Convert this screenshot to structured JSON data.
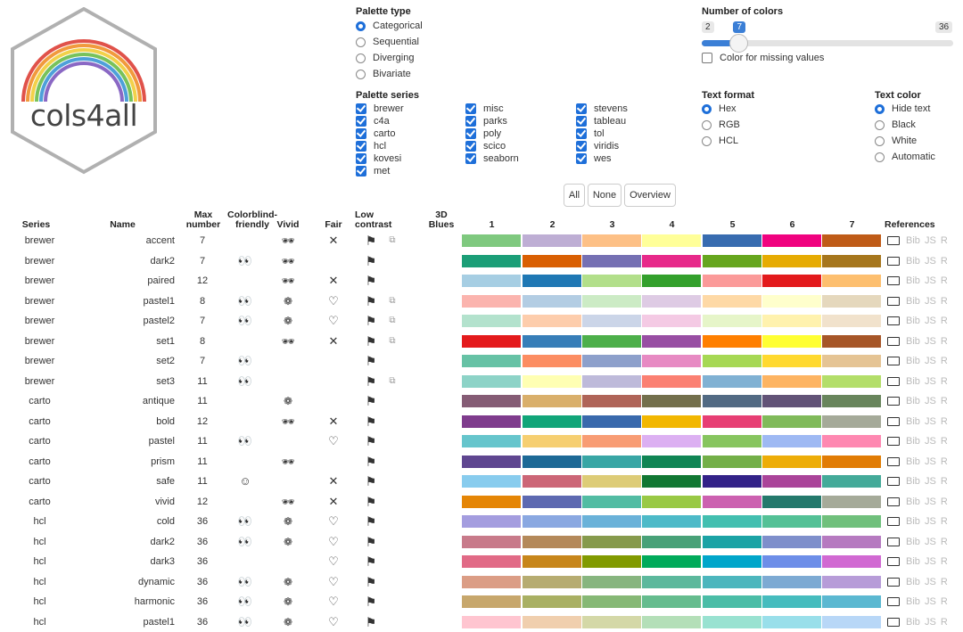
{
  "logo": {
    "text": "cols4all"
  },
  "palette_type": {
    "title": "Palette type",
    "options": [
      {
        "label": "Categorical",
        "selected": true
      },
      {
        "label": "Sequential",
        "selected": false
      },
      {
        "label": "Diverging",
        "selected": false
      },
      {
        "label": "Bivariate",
        "selected": false
      }
    ]
  },
  "number_of_colors": {
    "title": "Number of colors",
    "min": "2",
    "value": "7",
    "max": "36",
    "value_fraction": 0.147,
    "missing_label": "Color for missing values"
  },
  "palette_series": {
    "title": "Palette series",
    "columns": [
      [
        "brewer",
        "c4a",
        "carto",
        "hcl",
        "kovesi",
        "met"
      ],
      [
        "misc",
        "parks",
        "poly",
        "scico",
        "seaborn"
      ],
      [
        "stevens",
        "tableau",
        "tol",
        "viridis",
        "wes"
      ]
    ]
  },
  "text_format": {
    "title": "Text format",
    "options": [
      {
        "label": "Hex",
        "selected": true
      },
      {
        "label": "RGB",
        "selected": false
      },
      {
        "label": "HCL",
        "selected": false
      }
    ]
  },
  "text_color": {
    "title": "Text color",
    "options": [
      {
        "label": "Hide text",
        "selected": true
      },
      {
        "label": "Black",
        "selected": false
      },
      {
        "label": "White",
        "selected": false
      },
      {
        "label": "Automatic",
        "selected": false
      }
    ]
  },
  "buttons": {
    "all": "All",
    "none": "None",
    "overview": "Overview"
  },
  "table": {
    "headers": {
      "series": "Series",
      "name": "Name",
      "max": "Max number",
      "colorblind": "Colorblind-friendly",
      "vivid": "Vivid",
      "fair": "Fair",
      "low_contrast": "Low contrast",
      "blues": "3D Blues",
      "references": "References",
      "cols": [
        "1",
        "2",
        "3",
        "4",
        "5",
        "6",
        "7"
      ]
    },
    "icons": {
      "colorblind_eyes": "👀",
      "colorblind_smile": "☺",
      "vivid": "🕶",
      "vivid_soft": "❁",
      "fair_x": "✕",
      "fair_heart": "♡",
      "flag": "⚑",
      "split": "⧉"
    },
    "ref_text": "Bib JS R",
    "rows": [
      {
        "series": "brewer",
        "name": "accent",
        "max": "7",
        "cb": "",
        "vivid": "🕶",
        "fair": "✕",
        "low2": "⧉",
        "colors": [
          "#7fc97f",
          "#beaed4",
          "#fdc086",
          "#ffff99",
          "#386cb0",
          "#f0027f",
          "#bf5b17"
        ]
      },
      {
        "series": "brewer",
        "name": "dark2",
        "max": "7",
        "cb": "👀",
        "vivid": "🕶",
        "fair": "",
        "low2": "",
        "colors": [
          "#1b9e77",
          "#d95f02",
          "#7570b3",
          "#e7298a",
          "#66a61e",
          "#e6ab02",
          "#a6761d"
        ]
      },
      {
        "series": "brewer",
        "name": "paired",
        "max": "12",
        "cb": "",
        "vivid": "🕶",
        "fair": "✕",
        "low2": "",
        "colors": [
          "#a6cee3",
          "#1f78b4",
          "#b2df8a",
          "#33a02c",
          "#fb9a99",
          "#e31a1c",
          "#fdbf6f"
        ]
      },
      {
        "series": "brewer",
        "name": "pastel1",
        "max": "8",
        "cb": "👀",
        "vivid": "❁",
        "fair": "♡",
        "low2": "⧉",
        "colors": [
          "#fbb4ae",
          "#b3cde3",
          "#ccebc5",
          "#decbe4",
          "#fed9a6",
          "#ffffcc",
          "#e5d8bd"
        ]
      },
      {
        "series": "brewer",
        "name": "pastel2",
        "max": "7",
        "cb": "👀",
        "vivid": "❁",
        "fair": "♡",
        "low2": "⧉",
        "colors": [
          "#b3e2cd",
          "#fdcdac",
          "#cbd5e8",
          "#f4cae4",
          "#e6f5c9",
          "#fff2ae",
          "#f1e2cc"
        ]
      },
      {
        "series": "brewer",
        "name": "set1",
        "max": "8",
        "cb": "",
        "vivid": "🕶",
        "fair": "✕",
        "low2": "⧉",
        "colors": [
          "#e41a1c",
          "#377eb8",
          "#4daf4a",
          "#984ea3",
          "#ff7f00",
          "#ffff33",
          "#a65628"
        ]
      },
      {
        "series": "brewer",
        "name": "set2",
        "max": "7",
        "cb": "👀",
        "vivid": "",
        "fair": "",
        "low2": "",
        "colors": [
          "#66c2a5",
          "#fc8d62",
          "#8da0cb",
          "#e78ac3",
          "#a6d854",
          "#ffd92f",
          "#e5c494"
        ]
      },
      {
        "series": "brewer",
        "name": "set3",
        "max": "11",
        "cb": "👀",
        "vivid": "",
        "fair": "",
        "low2": "⧉",
        "colors": [
          "#8dd3c7",
          "#ffffb3",
          "#bebada",
          "#fb8072",
          "#80b1d3",
          "#fdb462",
          "#b3de69"
        ]
      },
      {
        "series": "carto",
        "name": "antique",
        "max": "11",
        "cb": "",
        "vivid": "❁",
        "fair": "",
        "low2": "",
        "colors": [
          "#855c75",
          "#d9af6b",
          "#af6458",
          "#736f4c",
          "#526a83",
          "#625377",
          "#68855c"
        ]
      },
      {
        "series": "carto",
        "name": "bold",
        "max": "12",
        "cb": "",
        "vivid": "🕶",
        "fair": "✕",
        "low2": "",
        "colors": [
          "#7f3c8d",
          "#11a579",
          "#3969ac",
          "#f2b701",
          "#e73f74",
          "#80ba5a",
          "#a5aa99"
        ]
      },
      {
        "series": "carto",
        "name": "pastel",
        "max": "11",
        "cb": "👀",
        "vivid": "",
        "fair": "♡",
        "low2": "",
        "colors": [
          "#66c5cc",
          "#f6cf71",
          "#f89c74",
          "#dcb0f2",
          "#87c55f",
          "#9eb9f3",
          "#fe88b1"
        ]
      },
      {
        "series": "carto",
        "name": "prism",
        "max": "11",
        "cb": "",
        "vivid": "🕶",
        "fair": "",
        "low2": "",
        "colors": [
          "#5f4690",
          "#1d6996",
          "#38a6a5",
          "#0f8554",
          "#73af48",
          "#edad08",
          "#e17c05"
        ]
      },
      {
        "series": "carto",
        "name": "safe",
        "max": "11",
        "cb": "☺",
        "vivid": "",
        "fair": "✕",
        "low2": "",
        "colors": [
          "#88ccee",
          "#cc6677",
          "#ddcc77",
          "#117733",
          "#332288",
          "#aa4499",
          "#44aa99"
        ]
      },
      {
        "series": "carto",
        "name": "vivid",
        "max": "12",
        "cb": "",
        "vivid": "🕶",
        "fair": "✕",
        "low2": "",
        "colors": [
          "#e58606",
          "#5d69b1",
          "#52bca3",
          "#99c945",
          "#cc61b0",
          "#24796c",
          "#a5aa99"
        ]
      },
      {
        "series": "hcl",
        "name": "cold",
        "max": "36",
        "cb": "👀",
        "vivid": "❁",
        "fair": "♡",
        "low2": "",
        "colors": [
          "#a49ddf",
          "#8aa8e1",
          "#6ab2d9",
          "#4dbac8",
          "#43bfb0",
          "#54c196",
          "#70c07c"
        ]
      },
      {
        "series": "hcl",
        "name": "dark2",
        "max": "36",
        "cb": "👀",
        "vivid": "❁",
        "fair": "♡",
        "low2": "",
        "colors": [
          "#c87a8a",
          "#b4895a",
          "#869a4c",
          "#48a178",
          "#1ba3a5",
          "#7e8fcb",
          "#b67ac0"
        ]
      },
      {
        "series": "hcl",
        "name": "dark3",
        "max": "36",
        "cb": "",
        "vivid": "",
        "fair": "♡",
        "low2": "",
        "colors": [
          "#e16a86",
          "#c7861b",
          "#819a00",
          "#00aa5a",
          "#00a6ca",
          "#6d8ee8",
          "#d169d2"
        ]
      },
      {
        "series": "hcl",
        "name": "dynamic",
        "max": "36",
        "cb": "👀",
        "vivid": "❁",
        "fair": "♡",
        "low2": "",
        "colors": [
          "#db9d85",
          "#b6ac71",
          "#87b57f",
          "#5cb89c",
          "#4cb6bd",
          "#7daad3",
          "#b79cd8"
        ]
      },
      {
        "series": "hcl",
        "name": "harmonic",
        "max": "36",
        "cb": "👀",
        "vivid": "❁",
        "fair": "♡",
        "low2": "",
        "colors": [
          "#c7a76c",
          "#a9b063",
          "#86b875",
          "#65bc8e",
          "#4bbda7",
          "#46bcbe",
          "#5bb8d1"
        ]
      },
      {
        "series": "hcl",
        "name": "pastel1",
        "max": "36",
        "cb": "👀",
        "vivid": "❁",
        "fair": "♡",
        "low2": "",
        "colors": [
          "#ffc5d0",
          "#f0cfae",
          "#d4d8a7",
          "#b4dfb8",
          "#99e2d1",
          "#99dfea",
          "#b8d7f7"
        ]
      }
    ]
  }
}
